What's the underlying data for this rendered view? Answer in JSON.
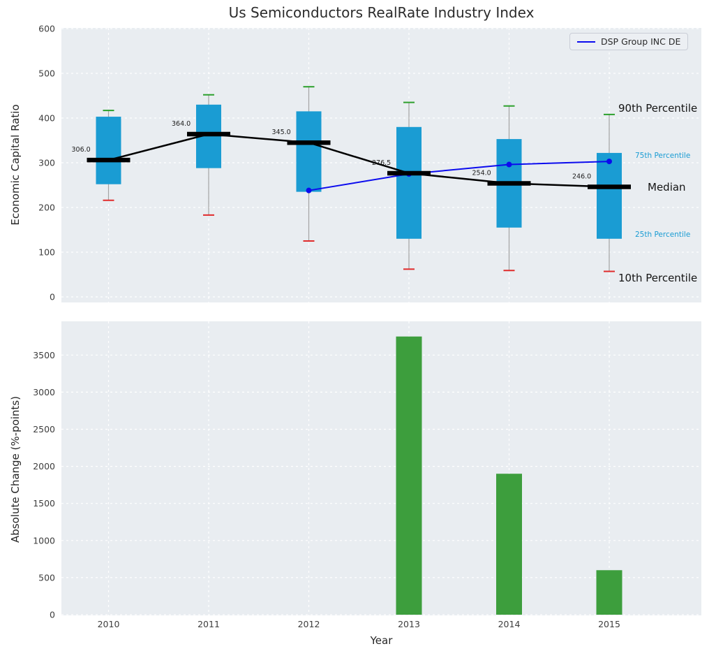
{
  "title": "Us Semiconductors RealRate Industry Index",
  "annotations": {
    "p90": "90th Percentile",
    "p75": "75th Percentile",
    "median": "Median",
    "p25": "25th Percentile",
    "p10": "10th Percentile"
  },
  "colors": {
    "box": "#1a9cd3",
    "whisker": "#a3a3a3",
    "cap_high": "#2ca02c",
    "cap_low": "#e02b2b",
    "median": "#000000",
    "dsp_line": "#0b0bee",
    "bar": "#3d9e3d",
    "panel_bg": "#e9edf1",
    "grid": "#ffffff",
    "tick_label": "#3d3d3d"
  },
  "chart_data": [
    {
      "type": "boxplot",
      "title": "Us Semiconductors RealRate Industry Index",
      "ylabel": "Economic Capital Ratio",
      "ylim": [
        0,
        600
      ],
      "yticks": [
        0,
        100,
        200,
        300,
        400,
        500,
        600
      ],
      "grid": true,
      "legend_position": "upper right",
      "categories": [
        "2010",
        "2011",
        "2012",
        "2013",
        "2014",
        "2015"
      ],
      "boxes": [
        {
          "year": "2010",
          "p10": 216,
          "p25": 252,
          "median": 306,
          "p75": 403,
          "p90": 417
        },
        {
          "year": "2011",
          "p10": 183,
          "p25": 288,
          "median": 364,
          "p75": 430,
          "p90": 452
        },
        {
          "year": "2012",
          "p10": 125,
          "p25": 235,
          "median": 345,
          "p75": 415,
          "p90": 470
        },
        {
          "year": "2013",
          "p10": 62,
          "p25": 130,
          "median": 276.5,
          "p75": 380,
          "p90": 435
        },
        {
          "year": "2014",
          "p10": 59,
          "p25": 155,
          "median": 254,
          "p75": 353,
          "p90": 427
        },
        {
          "year": "2015",
          "p10": 57,
          "p25": 130,
          "median": 246,
          "p75": 322,
          "p90": 408
        }
      ],
      "median_labels": [
        "306.0",
        "364.0",
        "345.0",
        "276.5",
        "254.0",
        "246.0"
      ],
      "series": [
        {
          "name": "DSP Group INC DE",
          "x": [
            "2012",
            "2013",
            "2014",
            "2015"
          ],
          "values": [
            238,
            275,
            296,
            303
          ]
        }
      ]
    },
    {
      "type": "bar",
      "ylabel": "Absolute Change (%-points)",
      "xlabel": "Year",
      "ylim": [
        0,
        3900
      ],
      "yticks": [
        0,
        500,
        1000,
        1500,
        2000,
        2500,
        3000,
        3500
      ],
      "grid": true,
      "categories": [
        "2010",
        "2011",
        "2012",
        "2013",
        "2014",
        "2015"
      ],
      "values": [
        null,
        null,
        null,
        3750,
        1900,
        600
      ]
    }
  ]
}
